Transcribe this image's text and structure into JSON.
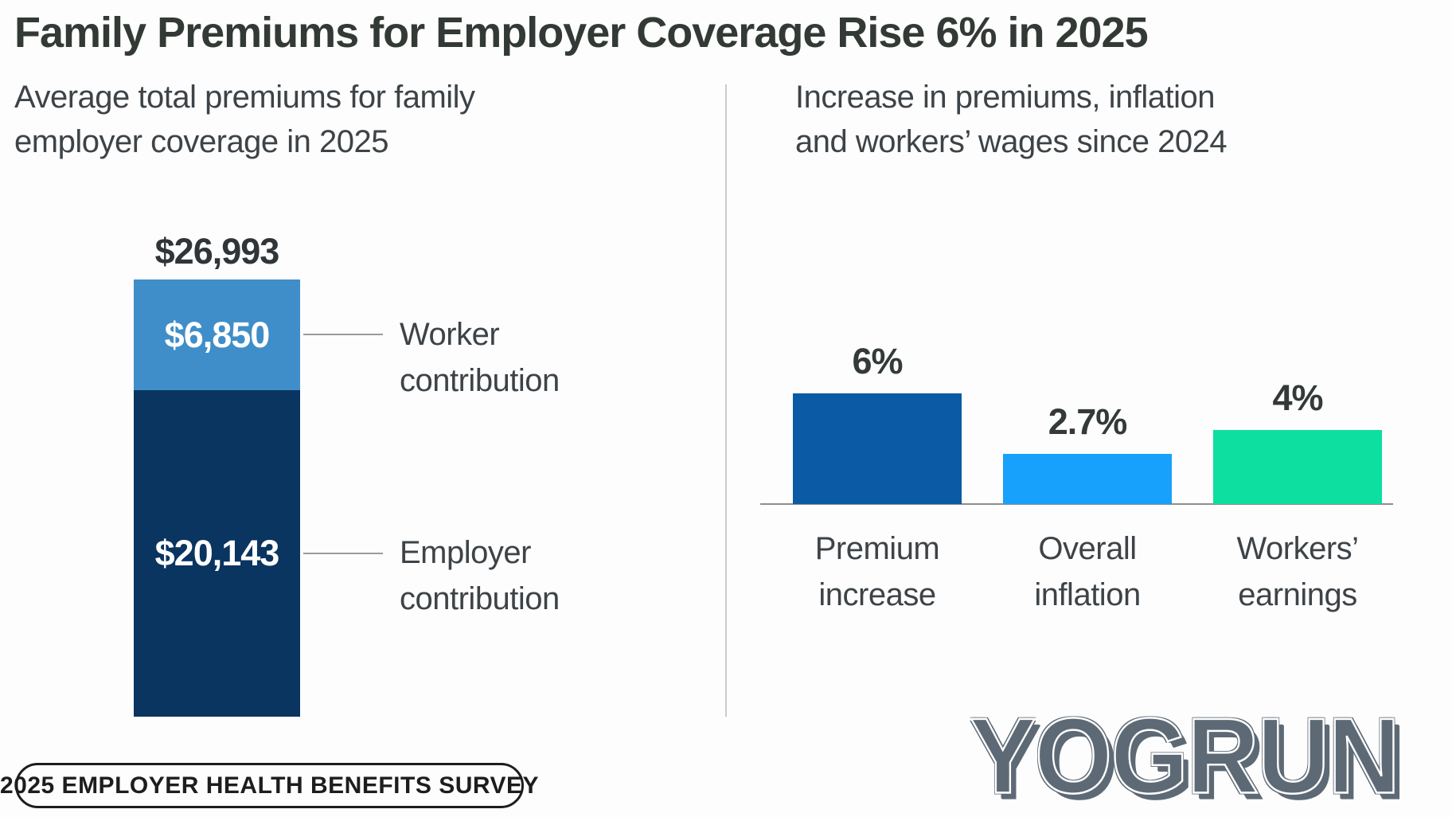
{
  "title": "Family Premiums for Employer Coverage Rise 6% in 2025",
  "left_chart": {
    "subtitle_line1": "Average total premiums for family",
    "subtitle_line2": "employer coverage in 2025"
  },
  "right_chart": {
    "subtitle_line1": "Increase in premiums, inflation",
    "subtitle_line2": "and workers’ wages since 2024"
  },
  "footer": {
    "badge_label": "2025 EMPLOYER HEALTH BENEFITS SURVEY",
    "brand": "YOGRUN"
  },
  "colors": {
    "worker_segment": "#3f8ec9",
    "employer_segment": "#0a3560",
    "premium_increase_bar": "#0b5aa5",
    "overall_inflation_bar": "#17a1fc",
    "workers_earnings_bar": "#0ddfa0",
    "divider": "#cbcbcb",
    "axis_line": "#8d8d8d",
    "logo": "#5d6a75"
  },
  "chart_data": [
    {
      "type": "bar",
      "variant": "single-stacked-column",
      "title": "Average total premiums for family employer coverage in 2025",
      "total_value": 26993,
      "total_label": "$26,993",
      "segments": [
        {
          "name": "Worker contribution",
          "value": 6850,
          "label": "$6,850",
          "color": "#3f8ec9"
        },
        {
          "name": "Employer contribution",
          "value": 20143,
          "label": "$20,143",
          "color": "#0a3560"
        }
      ],
      "unit": "USD"
    },
    {
      "type": "bar",
      "title": "Increase in premiums, inflation and workers’ wages since 2024",
      "categories": [
        "Premium increase",
        "Overall inflation",
        "Workers’ earnings"
      ],
      "values": [
        6,
        2.7,
        4
      ],
      "value_labels": [
        "6%",
        "2.7%",
        "4%"
      ],
      "colors": [
        "#0b5aa5",
        "#17a1fc",
        "#0ddfa0"
      ],
      "ylim": [
        0,
        6
      ],
      "unit": "percent",
      "grid": false,
      "legend": false
    }
  ]
}
